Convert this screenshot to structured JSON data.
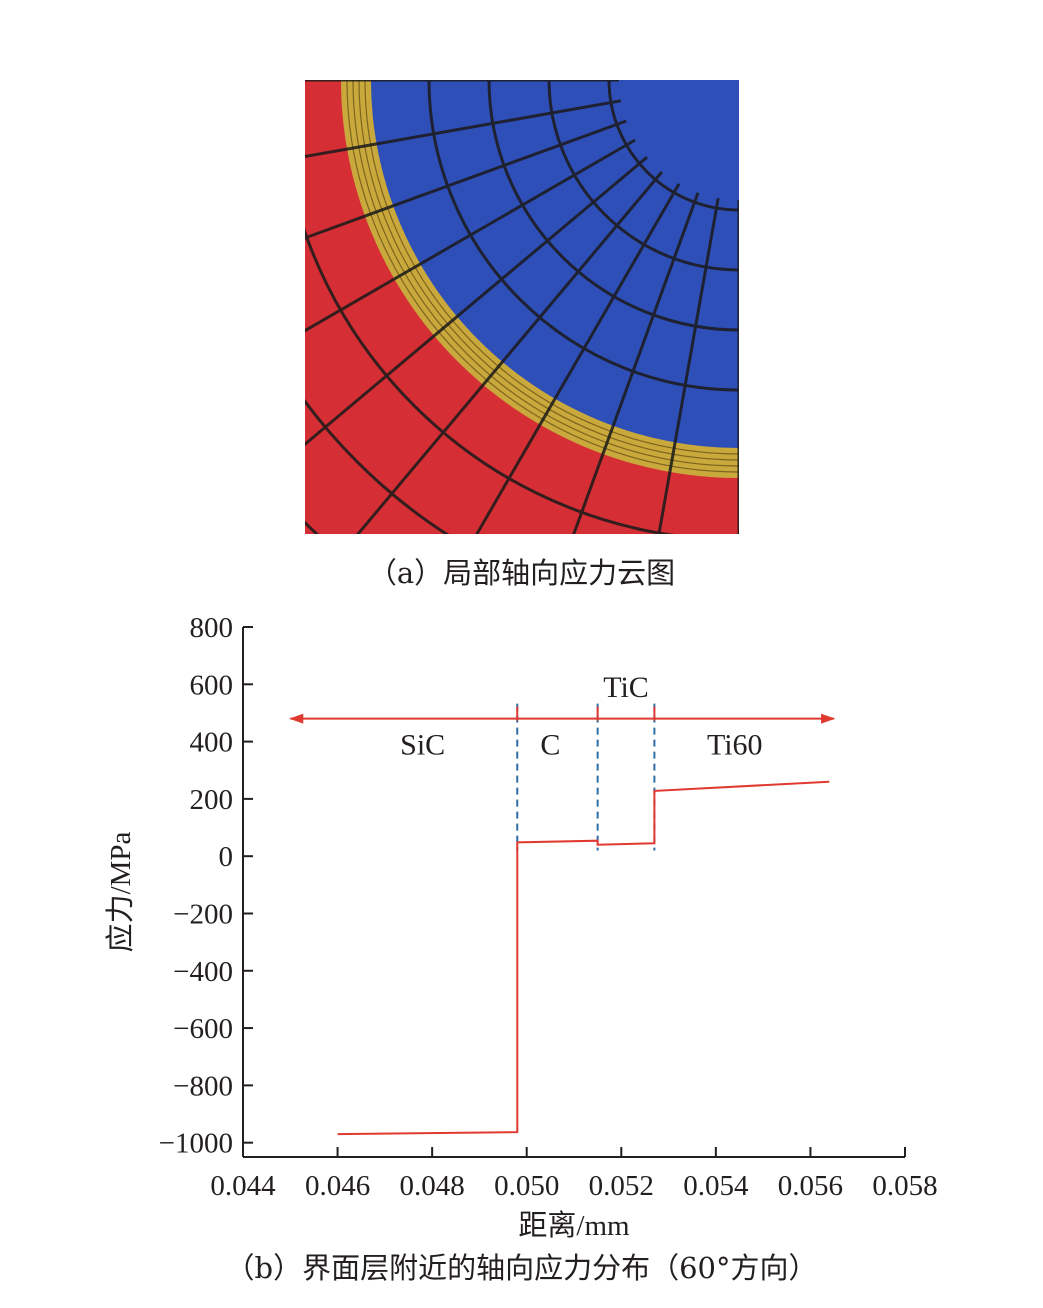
{
  "figure_a": {
    "caption": "（a）局部轴向应力云图",
    "colors": {
      "sic": "#d52f35",
      "interface": "#c9a83c",
      "ti60": "#2f4fb8",
      "mesh": "#1a1a1a"
    }
  },
  "figure_b": {
    "caption": "（b）界面层附近的轴向应力分布（60°方向）"
  },
  "chart_data": {
    "type": "line",
    "xlabel": "距离/mm",
    "ylabel": "应力/MPa",
    "xlim": [
      0.044,
      0.058
    ],
    "ylim": [
      -1050,
      800
    ],
    "xticks": [
      0.044,
      0.046,
      0.048,
      0.05,
      0.052,
      0.054,
      0.056,
      0.058
    ],
    "xtick_labels": [
      "0.044",
      "0.046",
      "0.048",
      "0.050",
      "0.052",
      "0.054",
      "0.056",
      "0.058"
    ],
    "yticks": [
      800,
      600,
      400,
      200,
      0,
      -200,
      -400,
      -600,
      -800,
      -1000
    ],
    "ytick_labels": [
      "800",
      "600",
      "400",
      "200",
      "0",
      "−200",
      "−400",
      "−600",
      "−800",
      "−1000"
    ],
    "series": [
      {
        "color": "#e03a30",
        "x": [
          0.046,
          0.0498,
          0.0498,
          0.0515,
          0.0515,
          0.0527,
          0.0527,
          0.0564
        ],
        "y": [
          -970,
          -963,
          48,
          54,
          40,
          45,
          228,
          260
        ]
      }
    ],
    "boundaries": [
      0.0498,
      0.0515,
      0.0527
    ],
    "arrow": {
      "y": 480,
      "x_from": 0.045,
      "x_to": 0.0565,
      "color": "#e03a30"
    },
    "regions": [
      {
        "label": "SiC",
        "x": 0.0478,
        "y": 390
      },
      {
        "label": "C",
        "x": 0.0505,
        "y": 390
      },
      {
        "label": "TiC",
        "x": 0.0521,
        "y": 590
      },
      {
        "label": "Ti60",
        "x": 0.0544,
        "y": 390
      }
    ],
    "grid": false
  }
}
